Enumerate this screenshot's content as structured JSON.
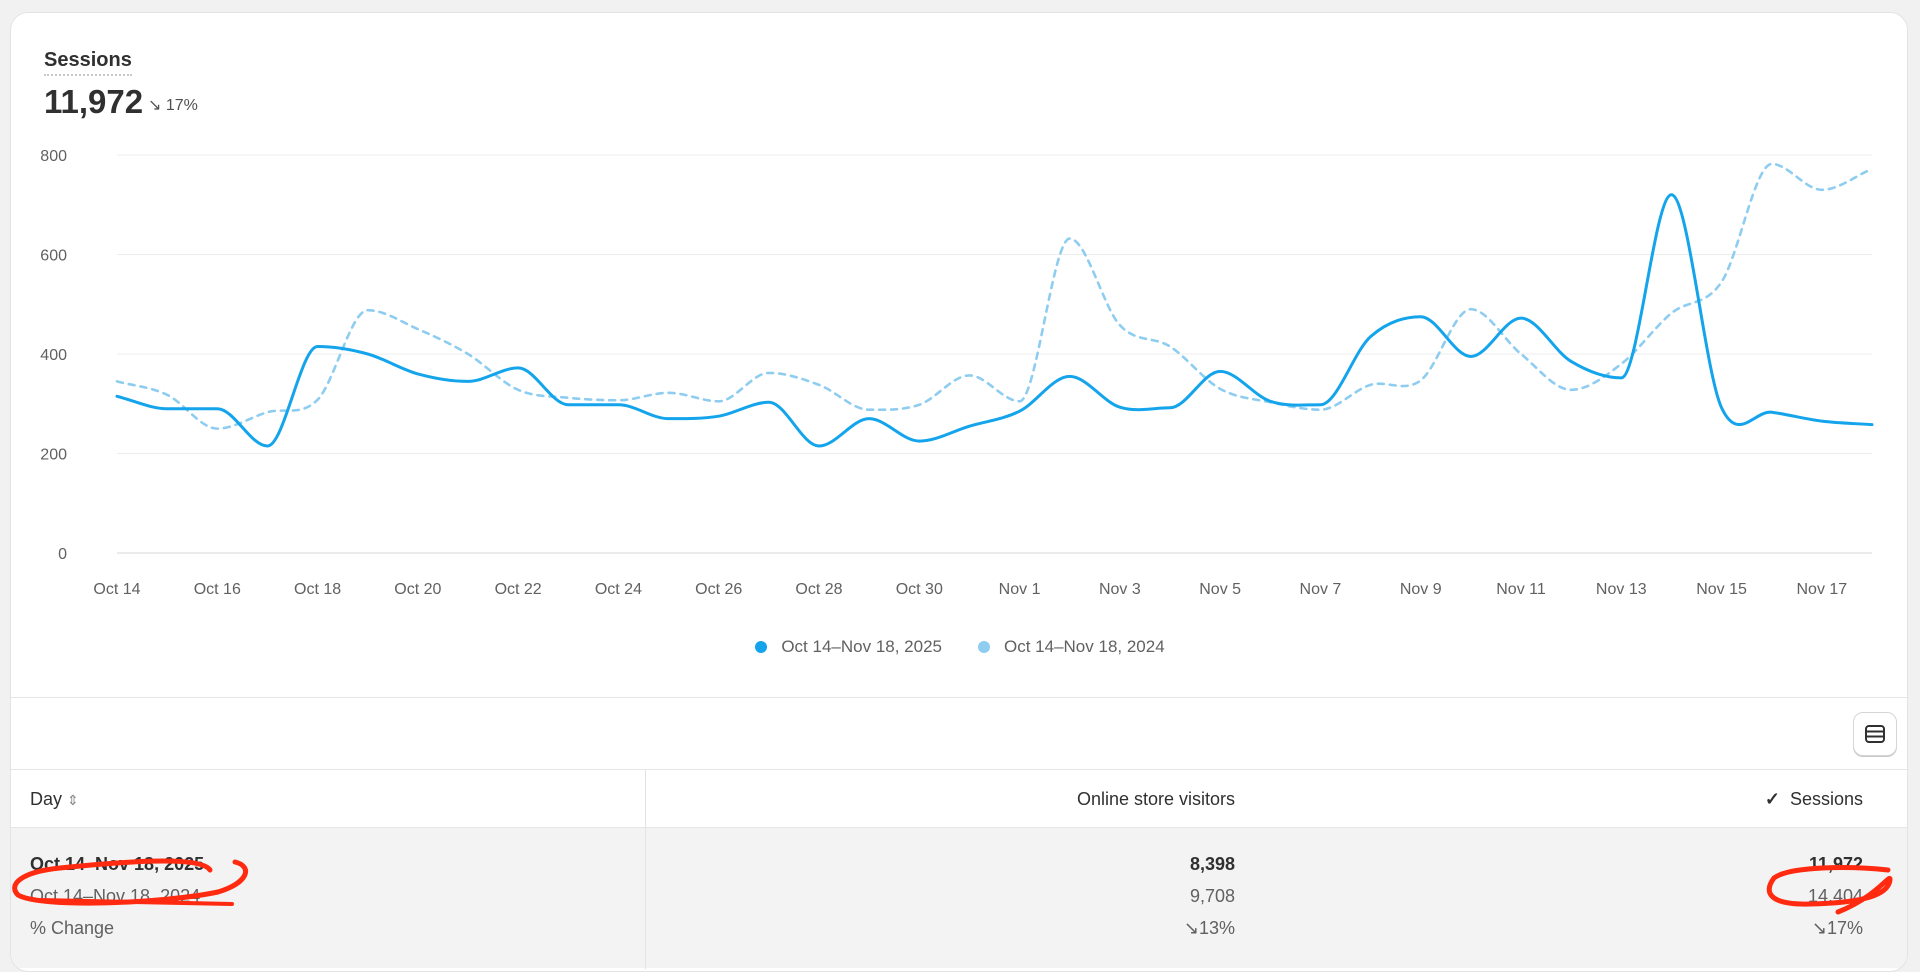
{
  "metric": {
    "title": "Sessions",
    "value": "11,972",
    "change": "17%",
    "change_direction": "down"
  },
  "colors": {
    "current": "#13a4ec",
    "previous": "#8ecdf0",
    "annotation": "#ff2a10"
  },
  "legend": [
    "Oct 14–Nov 18, 2025",
    "Oct 14–Nov 18, 2024"
  ],
  "chart_data": {
    "type": "line",
    "ylim": [
      0,
      800
    ],
    "yticks": [
      "800",
      "600",
      "400",
      "200",
      "0"
    ],
    "grid": true,
    "legend_position": "bottom",
    "xtick_labels": [
      "Oct 14",
      "Oct 16",
      "Oct 18",
      "Oct 20",
      "Oct 22",
      "Oct 24",
      "Oct 26",
      "Oct 28",
      "Oct 30",
      "Nov 1",
      "Nov 3",
      "Nov 5",
      "Nov 7",
      "Nov 9",
      "Nov 11",
      "Nov 13",
      "Nov 15",
      "Nov 17"
    ],
    "x": [
      "Oct 14",
      "Oct 15",
      "Oct 16",
      "Oct 17",
      "Oct 18",
      "Oct 19",
      "Oct 20",
      "Oct 21",
      "Oct 22",
      "Oct 23",
      "Oct 24",
      "Oct 25",
      "Oct 26",
      "Oct 27",
      "Oct 28",
      "Oct 29",
      "Oct 30",
      "Oct 31",
      "Nov 1",
      "Nov 2",
      "Nov 3",
      "Nov 4",
      "Nov 5",
      "Nov 6",
      "Nov 7",
      "Nov 8",
      "Nov 9",
      "Nov 10",
      "Nov 11",
      "Nov 12",
      "Nov 13",
      "Nov 14",
      "Nov 15",
      "Nov 16",
      "Nov 17",
      "Nov 18"
    ],
    "series": [
      {
        "name": "Oct 14–Nov 18, 2025",
        "style": "solid",
        "values": [
          315,
          290,
          290,
          215,
          415,
          400,
          360,
          345,
          372,
          298,
          298,
          270,
          275,
          303,
          215,
          270,
          225,
          255,
          285,
          355,
          293,
          292,
          365,
          305,
          298,
          435,
          475,
          395,
          472,
          385,
          352,
          720,
          292,
          283,
          265,
          258
        ]
      },
      {
        "name": "Oct 14–Nov 18, 2024",
        "style": "dashed",
        "values": [
          345,
          318,
          250,
          283,
          308,
          488,
          450,
          400,
          328,
          312,
          307,
          322,
          305,
          362,
          338,
          288,
          298,
          357,
          305,
          632,
          458,
          415,
          330,
          303,
          288,
          338,
          347,
          490,
          400,
          328,
          380,
          482,
          545,
          782,
          730,
          772
        ]
      }
    ]
  },
  "table": {
    "headers": {
      "day": "Day",
      "visitors": "Online store visitors",
      "sessions": "Sessions"
    },
    "rows": [
      {
        "day": "Oct 14–Nov 18, 2025",
        "visitors": "8,398",
        "sessions": "11,972"
      },
      {
        "day": "Oct 14–Nov 18, 2024",
        "visitors": "9,708",
        "sessions": "14,404"
      },
      {
        "day": "% Change",
        "visitors": "13%",
        "sessions": "17%"
      }
    ]
  }
}
